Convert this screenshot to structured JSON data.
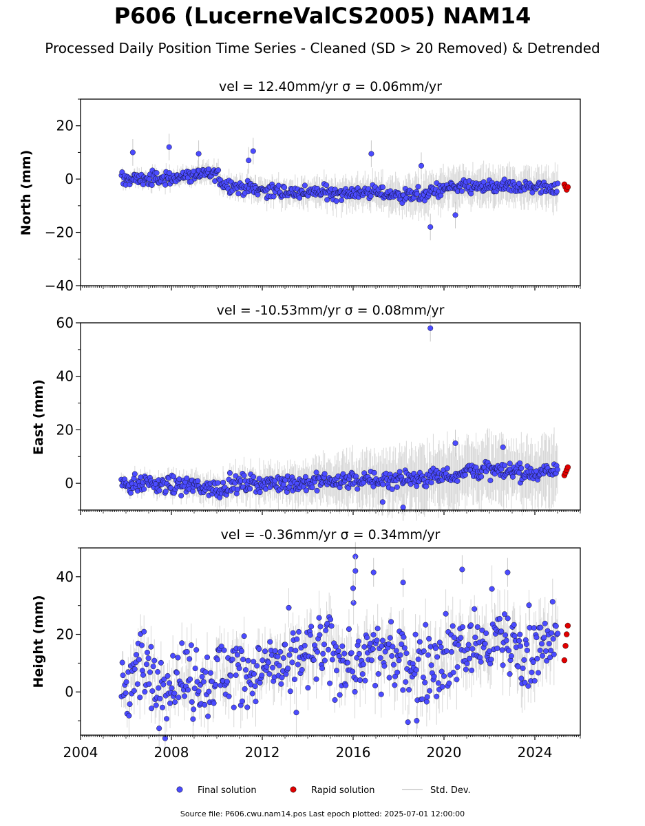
{
  "figure": {
    "title": "P606 (LucerneValCS2005) NAM14",
    "subtitle": "Processed Daily Position Time Series - Cleaned (SD > 20 Removed) & Detrended",
    "source_text": "Source file: P606.cwu.nam14.pos  Last epoch plotted: 2025-07-01 12:00:00"
  },
  "colors": {
    "final": "#4b4bff",
    "rapid": "#e00000",
    "std_dev": "#c8c8c8",
    "marker_edge": "#000000"
  },
  "legend": {
    "final_label": "Final solution",
    "rapid_label": "Rapid solution",
    "std_label": "Std. Dev."
  },
  "chart_data": [
    {
      "type": "scatter",
      "panel": "north",
      "title": "vel = 12.40mm/yr   σ = 0.06mm/yr",
      "ylabel": "North (mm)",
      "xlim": [
        2004,
        2026
      ],
      "ylim": [
        -40,
        30
      ],
      "y_ticks": [
        -40,
        -20,
        0,
        20
      ],
      "y_tick_labels": [
        "−40",
        "−20",
        "0",
        "20"
      ],
      "x_ticks": [
        2004,
        2008,
        2012,
        2016,
        2020,
        2024
      ],
      "x_tick_labels": [],
      "grid": false,
      "series": [
        {
          "name": "Final solution",
          "x": [
            2005.8,
            2006.5,
            2007.5,
            2008.5,
            2009.5,
            2010.0,
            2010.3,
            2011.0,
            2012.0,
            2013.0,
            2014.0,
            2015.0,
            2016.0,
            2017.0,
            2018.0,
            2019.0,
            2019.3,
            2019.5,
            2020.0,
            2021.0,
            2022.0,
            2023.0,
            2024.0,
            2025.0
          ],
          "y": [
            0,
            0,
            0,
            1,
            2,
            2,
            -2,
            -3,
            -4,
            -5,
            -5,
            -5,
            -5,
            -5,
            -6,
            -6,
            -6,
            -4,
            -4,
            -3,
            -3,
            -3,
            -3,
            -3
          ]
        },
        {
          "name": "Rapid solution",
          "x": [
            2025.3,
            2025.35,
            2025.4,
            2025.45
          ],
          "y": [
            -2,
            -3,
            -4,
            -3
          ]
        },
        {
          "name": "Std. Dev.",
          "x": [
            2005.8,
            2019.4
          ],
          "y": [
            2,
            6
          ]
        }
      ],
      "outliers": {
        "x": [
          2006.3,
          2007.9,
          2009.2,
          2011.4,
          2011.6,
          2016.8,
          2019.0,
          2019.4,
          2020.5
        ],
        "y": [
          10,
          12,
          9.5,
          7,
          10.5,
          9.5,
          5,
          -18,
          -13.5
        ]
      }
    },
    {
      "type": "scatter",
      "panel": "east",
      "title": "vel = -10.53mm/yr   σ = 0.08mm/yr",
      "ylabel": "East (mm)",
      "xlim": [
        2004,
        2026
      ],
      "ylim": [
        -10,
        60
      ],
      "y_ticks": [
        0,
        20,
        40,
        60
      ],
      "y_tick_labels": [
        "0",
        "20",
        "40",
        "60"
      ],
      "x_ticks": [
        2004,
        2008,
        2012,
        2016,
        2020,
        2024
      ],
      "x_tick_labels": [],
      "grid": false,
      "series": [
        {
          "name": "Final solution",
          "x": [
            2005.8,
            2007.0,
            2008.0,
            2009.0,
            2010.0,
            2011.0,
            2012.0,
            2013.0,
            2014.0,
            2015.0,
            2016.0,
            2017.0,
            2018.0,
            2019.0,
            2020.0,
            2020.5,
            2021.0,
            2022.0,
            2023.0,
            2024.0,
            2025.0
          ],
          "y": [
            0,
            0,
            -1,
            -1,
            -2,
            0,
            0,
            0,
            0,
            1,
            1,
            1,
            2,
            2,
            3,
            3,
            5,
            5,
            4,
            4,
            5
          ]
        },
        {
          "name": "Rapid solution",
          "x": [
            2025.3,
            2025.35,
            2025.4,
            2025.45
          ],
          "y": [
            3,
            4,
            5,
            6
          ]
        },
        {
          "name": "Std. Dev.",
          "x": [
            2005.8,
            2019.4
          ],
          "y": [
            2,
            10
          ]
        }
      ],
      "outliers": {
        "x": [
          2019.4,
          2020.5,
          2022.6,
          2018.2,
          2017.3
        ],
        "y": [
          58,
          15,
          13.5,
          -9,
          -7
        ]
      }
    },
    {
      "type": "scatter",
      "panel": "height",
      "title": "vel = -0.36mm/yr   σ = 0.34mm/yr",
      "ylabel": "Height (mm)",
      "xlim": [
        2004,
        2026
      ],
      "ylim": [
        -15,
        50
      ],
      "y_ticks": [
        0,
        20,
        40
      ],
      "y_tick_labels": [
        "0",
        "20",
        "40"
      ],
      "x_ticks": [
        2004,
        2008,
        2012,
        2016,
        2020,
        2024
      ],
      "x_tick_labels": [
        "2004",
        "2008",
        "2012",
        "2016",
        "2020",
        "2024"
      ],
      "grid": false,
      "series": [
        {
          "name": "Final solution",
          "x": [
            2005.8,
            2006.5,
            2007.5,
            2008.5,
            2009.5,
            2010.5,
            2011.5,
            2012.5,
            2013.5,
            2014.5,
            2015.5,
            2016.5,
            2017.5,
            2018.5,
            2019.5,
            2020.5,
            2021.5,
            2022.5,
            2023.5,
            2024.5,
            2025.0
          ],
          "y": [
            2,
            8,
            3,
            6,
            4,
            8,
            6,
            8,
            10,
            14,
            12,
            11,
            12,
            10,
            11,
            15,
            16,
            18,
            15,
            17,
            18
          ]
        },
        {
          "name": "Rapid solution",
          "x": [
            2025.3,
            2025.35,
            2025.4,
            2025.45
          ],
          "y": [
            11,
            16,
            20,
            23
          ]
        },
        {
          "name": "Std. Dev.",
          "x": [
            2005.8,
            2025.2
          ],
          "y": [
            6,
            8
          ]
        }
      ],
      "outliers": {
        "x": [
          2016.1,
          2016.1,
          2016.9,
          2018.2,
          2020.8,
          2022.8,
          2018.8,
          2016.0
        ],
        "y": [
          47,
          42,
          41.5,
          38,
          42.5,
          41.5,
          -10,
          36
        ]
      }
    }
  ]
}
